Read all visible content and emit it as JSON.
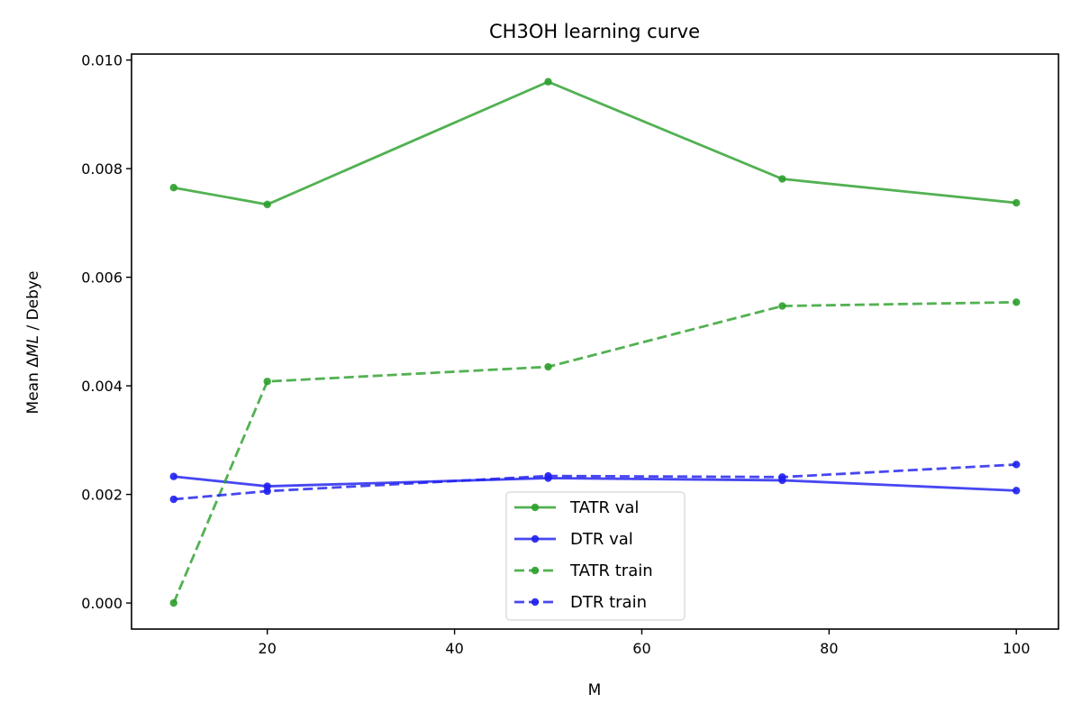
{
  "chart_data": {
    "type": "line",
    "title": "CH3OH learning curve",
    "xlabel": "M",
    "ylabel": "Mean ΔML / Debye",
    "ylabel_parts": {
      "pre": "Mean Δ",
      "math": "ML",
      "post": " / Debye"
    },
    "x": [
      10,
      20,
      50,
      75,
      100
    ],
    "xlim": [
      5.5,
      104.5
    ],
    "ylim": [
      -0.00048,
      0.01011
    ],
    "xticks": [
      {
        "value": 20,
        "label": "20"
      },
      {
        "value": 40,
        "label": "40"
      },
      {
        "value": 60,
        "label": "60"
      },
      {
        "value": 80,
        "label": "80"
      },
      {
        "value": 100,
        "label": "100"
      }
    ],
    "yticks": [
      {
        "value": 0.0,
        "label": "0.000"
      },
      {
        "value": 0.002,
        "label": "0.002"
      },
      {
        "value": 0.004,
        "label": "0.004"
      },
      {
        "value": 0.006,
        "label": "0.006"
      },
      {
        "value": 0.008,
        "label": "0.008"
      },
      {
        "value": 0.01,
        "label": "0.010"
      }
    ],
    "grid": false,
    "legend_position": "lower-center",
    "series": [
      {
        "name": "TATR val",
        "color": "#2ca02c",
        "dash": "solid",
        "values": [
          0.00765,
          0.00734,
          0.0096,
          0.00781,
          0.00737
        ]
      },
      {
        "name": "DTR val",
        "color": "#1f1fef",
        "dash": "solid",
        "values": [
          0.00233,
          0.00215,
          0.0023,
          0.00226,
          0.00207
        ]
      },
      {
        "name": "TATR train",
        "color": "#2ca02c",
        "dash": "dashed",
        "values": [
          0.0,
          0.00408,
          0.00435,
          0.00547,
          0.00554
        ]
      },
      {
        "name": "DTR train",
        "color": "#1f1fef",
        "dash": "dashed",
        "values": [
          0.00191,
          0.00206,
          0.00234,
          0.00232,
          0.00255
        ]
      }
    ]
  }
}
